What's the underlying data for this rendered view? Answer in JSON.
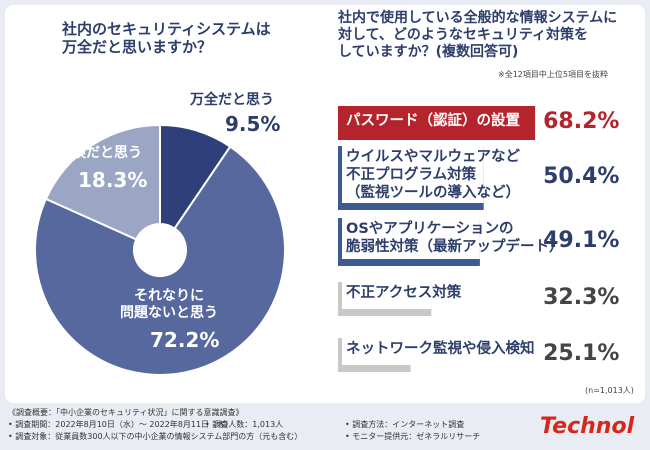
{
  "chart_data": [
    {
      "type": "donut",
      "title": "社内のセキュリティシステムは\n万全だと思いますか？",
      "categories": [
        "万全だと思う",
        "それなりに\n問題ないと思う",
        "危険だと思う"
      ],
      "values": [
        9.5,
        72.2,
        18.3
      ],
      "value_labels": [
        "9.5%",
        "72.2%",
        "18.3%"
      ],
      "colors": [
        "#2e3f7a",
        "#56689e",
        "#9ba6c4"
      ]
    },
    {
      "type": "barh",
      "title": "社内で使用している全般的な情報システムに\n対して、どのようなセキュリティ対策を\nしていますか？(複数回答可)",
      "note": "※全12項目中上位5項目を抜粋",
      "categories": [
        "パスワード（認証）の設置",
        "ウイルスやマルウェアなど\n不正プログラム対策\n（監視ツールの導入など）",
        "OSやアプリケーションの\n脆弱性対策（最新アップデート）",
        "不正アクセス対策",
        "ネットワーク監視や侵入検知"
      ],
      "values": [
        68.2,
        50.4,
        49.1,
        32.3,
        25.1
      ],
      "value_labels": [
        "68.2%",
        "50.4%",
        "49.1%",
        "32.3%",
        "25.1%"
      ],
      "colors": [
        "#b5232d",
        "#3d5b93",
        "#3d5b93",
        "#c8c8c8",
        "#c8c8c8"
      ],
      "value_label_colors": [
        "#b5232d",
        "#2d3e6b",
        "#2d3e6b",
        "#444444",
        "#444444"
      ],
      "xlim": [
        0,
        100
      ],
      "sample": "(n=1,013人)"
    }
  ],
  "survey": {
    "heading": "《調査概要：「中小企業のセキュリティ状況」に関する意識調査》",
    "items": [
      "• 調査期間：2022年8月10日（水）～ 2022年8月11日（木）",
      "• 調査人数：1,013人",
      "• 調査方法：インターネット調査",
      "• 調査対象：従業員数300人以下の中小企業の情報システム部門の方（元も含む）",
      "• モニター提供元：ゼネラルリサーチ"
    ]
  },
  "logo": "Technol"
}
